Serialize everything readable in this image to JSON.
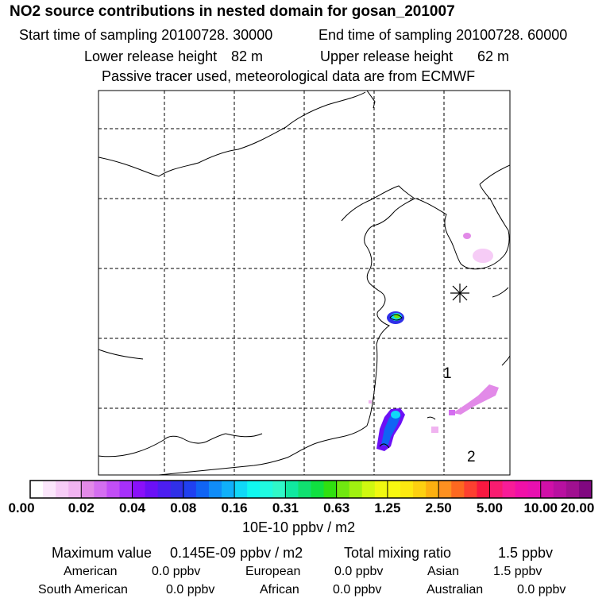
{
  "header": {
    "title": "NO2 source contributions in nested domain for gosan_201007",
    "start_label": "Start time of sampling 20100728. 30000",
    "end_label": "End time of sampling 20100728. 60000",
    "lower_label": "Lower release height",
    "lower_value": "82 m",
    "upper_label": "Upper release height",
    "upper_value": "62 m",
    "note": "Passive tracer used, meteorological data are from ECMWF"
  },
  "map": {
    "marker_labels": [
      "1",
      "2"
    ],
    "receptor_symbol": "asterisk"
  },
  "colorbar": {
    "tick_labels": [
      "0.00",
      "0.02",
      "0.04",
      "0.08",
      "0.16",
      "0.31",
      "0.63",
      "1.25",
      "2.50",
      "5.00",
      "10.00",
      "20.00"
    ],
    "colors": [
      "#ffffff",
      "#fbe6fb",
      "#f6ccf6",
      "#f0b3f0",
      "#e28ae8",
      "#d46ef0",
      "#c24ef6",
      "#a630fa",
      "#8a10fa",
      "#6b10f6",
      "#4c1ef0",
      "#3030e8",
      "#2040f0",
      "#1064f4",
      "#108cf8",
      "#10b0fa",
      "#10d8f8",
      "#10f8f0",
      "#20fae0",
      "#30f8c8",
      "#10e8a0",
      "#10e070",
      "#10e040",
      "#30e010",
      "#70e810",
      "#a0f010",
      "#d0f810",
      "#f0f810",
      "#f8f810",
      "#fce810",
      "#fcd010",
      "#fcb010",
      "#fc9020",
      "#fc6820",
      "#fc4030",
      "#f81840",
      "#f81c70",
      "#f81c98",
      "#f010a8",
      "#e810b0",
      "#d010a8",
      "#b810a0",
      "#a01090",
      "#800880"
    ],
    "unit": "10E-10 ppbv / m2"
  },
  "stats": {
    "max_label": "Maximum value",
    "max_value": "0.145E-09 ppbv / m2",
    "total_label": "Total mixing ratio",
    "total_value": "1.5 ppbv",
    "regions": [
      {
        "name": "American",
        "value": "0.0 ppbv"
      },
      {
        "name": "European",
        "value": "0.0 ppbv"
      },
      {
        "name": "Asian",
        "value": "1.5 ppbv"
      },
      {
        "name": "South American",
        "value": "0.0 ppbv"
      },
      {
        "name": "African",
        "value": "0.0 ppbv"
      },
      {
        "name": "Australian",
        "value": "0.0 ppbv"
      }
    ]
  }
}
